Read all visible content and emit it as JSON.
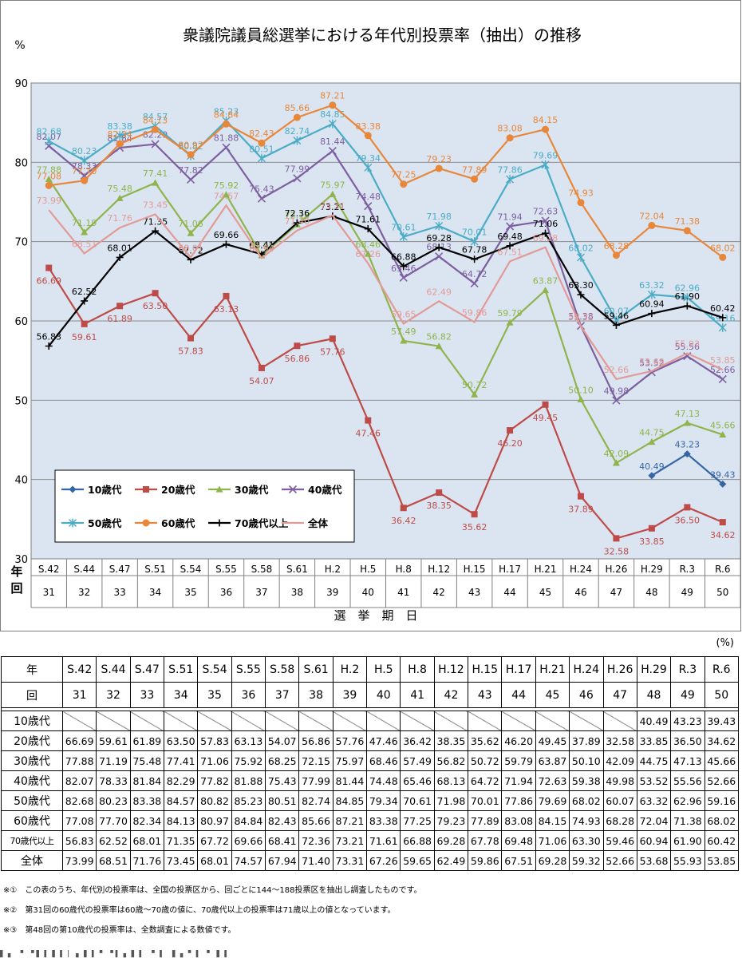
{
  "chart_data": {
    "type": "line",
    "title": "衆議院議員総選挙における年代別投票率（抽出）の推移",
    "ylabel": "%",
    "xlabel": "選　挙　期　日",
    "ylim": [
      30,
      90
    ],
    "yticks": [
      "30",
      "40",
      "50",
      "60",
      "70",
      "80",
      "90"
    ],
    "x_row_label_1": "年",
    "x_row_label_2": "回",
    "categories": [
      "S.42",
      "S.44",
      "S.47",
      "S.51",
      "S.54",
      "S.55",
      "S.58",
      "S.61",
      "H.2",
      "H.5",
      "H.8",
      "H.12",
      "H.15",
      "H.17",
      "H.21",
      "H.24",
      "H.26",
      "H.29",
      "R.3",
      "R.6"
    ],
    "sessions": [
      "31",
      "32",
      "33",
      "34",
      "35",
      "36",
      "37",
      "38",
      "39",
      "40",
      "41",
      "42",
      "43",
      "44",
      "45",
      "46",
      "47",
      "48",
      "49",
      "50"
    ],
    "grid": true,
    "legend_position": "bottom-left",
    "series": [
      {
        "name": "10歳代",
        "color": "#3465a4",
        "marker": "diamond",
        "values": [
          null,
          null,
          null,
          null,
          null,
          null,
          null,
          null,
          null,
          null,
          null,
          null,
          null,
          null,
          null,
          null,
          null,
          40.49,
          43.23,
          39.43
        ]
      },
      {
        "name": "20歳代",
        "color": "#be4b48",
        "marker": "square",
        "values": [
          66.69,
          59.61,
          61.89,
          63.5,
          57.83,
          63.13,
          54.07,
          56.86,
          57.76,
          47.46,
          36.42,
          38.35,
          35.62,
          46.2,
          49.45,
          37.89,
          32.58,
          33.85,
          36.5,
          34.62
        ]
      },
      {
        "name": "30歳代",
        "color": "#8fb44b",
        "marker": "triangle",
        "values": [
          77.88,
          71.19,
          75.48,
          77.41,
          71.06,
          75.92,
          68.25,
          72.15,
          75.97,
          68.46,
          57.49,
          56.82,
          50.72,
          59.79,
          63.87,
          50.1,
          42.09,
          44.75,
          47.13,
          45.66
        ]
      },
      {
        "name": "40歳代",
        "color": "#7d5fa0",
        "marker": "x",
        "values": [
          82.07,
          78.33,
          81.84,
          82.29,
          77.82,
          81.88,
          75.43,
          77.99,
          81.44,
          74.48,
          65.46,
          68.13,
          64.72,
          71.94,
          72.63,
          59.38,
          49.98,
          53.52,
          55.56,
          52.66
        ]
      },
      {
        "name": "50歳代",
        "color": "#4bacc6",
        "marker": "star",
        "values": [
          82.68,
          80.23,
          83.38,
          84.57,
          80.82,
          85.23,
          80.51,
          82.74,
          84.85,
          79.34,
          70.61,
          71.98,
          70.01,
          77.86,
          79.69,
          68.02,
          60.07,
          63.32,
          62.96,
          59.16
        ]
      },
      {
        "name": "60歳代",
        "color": "#e8873a",
        "marker": "circle",
        "values": [
          77.08,
          77.7,
          82.34,
          84.13,
          80.97,
          84.84,
          82.43,
          85.66,
          87.21,
          83.38,
          77.25,
          79.23,
          77.89,
          83.08,
          84.15,
          74.93,
          68.28,
          72.04,
          71.38,
          68.02
        ]
      },
      {
        "name": "70歳代以上",
        "color": "#000000",
        "marker": "plus",
        "values": [
          56.83,
          62.52,
          68.01,
          71.35,
          67.72,
          69.66,
          68.41,
          72.36,
          73.21,
          71.61,
          66.88,
          69.28,
          67.78,
          69.48,
          71.06,
          63.3,
          59.46,
          60.94,
          61.9,
          60.42
        ]
      },
      {
        "name": "全体",
        "color": "#e29a97",
        "marker": "none",
        "values": [
          73.99,
          68.51,
          71.76,
          73.45,
          68.01,
          74.57,
          67.94,
          71.4,
          73.31,
          67.26,
          59.65,
          62.49,
          59.86,
          67.51,
          69.28,
          59.32,
          52.66,
          53.68,
          55.93,
          53.85
        ]
      }
    ]
  },
  "table": {
    "unit": "(%)",
    "col_label_year": "年",
    "col_label_session": "回",
    "rows": [
      {
        "label": "10歳代",
        "values": [
          "",
          "",
          "",
          "",
          "",
          "",
          "",
          "",
          "",
          "",
          "",
          "",
          "",
          "",
          "",
          "",
          "",
          "40.49",
          "43.23",
          "39.43"
        ]
      },
      {
        "label": "20歳代",
        "values": [
          "66.69",
          "59.61",
          "61.89",
          "63.50",
          "57.83",
          "63.13",
          "54.07",
          "56.86",
          "57.76",
          "47.46",
          "36.42",
          "38.35",
          "35.62",
          "46.20",
          "49.45",
          "37.89",
          "32.58",
          "33.85",
          "36.50",
          "34.62"
        ]
      },
      {
        "label": "30歳代",
        "values": [
          "77.88",
          "71.19",
          "75.48",
          "77.41",
          "71.06",
          "75.92",
          "68.25",
          "72.15",
          "75.97",
          "68.46",
          "57.49",
          "56.82",
          "50.72",
          "59.79",
          "63.87",
          "50.10",
          "42.09",
          "44.75",
          "47.13",
          "45.66"
        ]
      },
      {
        "label": "40歳代",
        "values": [
          "82.07",
          "78.33",
          "81.84",
          "82.29",
          "77.82",
          "81.88",
          "75.43",
          "77.99",
          "81.44",
          "74.48",
          "65.46",
          "68.13",
          "64.72",
          "71.94",
          "72.63",
          "59.38",
          "49.98",
          "53.52",
          "55.56",
          "52.66"
        ]
      },
      {
        "label": "50歳代",
        "values": [
          "82.68",
          "80.23",
          "83.38",
          "84.57",
          "80.82",
          "85.23",
          "80.51",
          "82.74",
          "84.85",
          "79.34",
          "70.61",
          "71.98",
          "70.01",
          "77.86",
          "79.69",
          "68.02",
          "60.07",
          "63.32",
          "62.96",
          "59.16"
        ]
      },
      {
        "label": "60歳代",
        "values": [
          "77.08",
          "77.70",
          "82.34",
          "84.13",
          "80.97",
          "84.84",
          "82.43",
          "85.66",
          "87.21",
          "83.38",
          "77.25",
          "79.23",
          "77.89",
          "83.08",
          "84.15",
          "74.93",
          "68.28",
          "72.04",
          "71.38",
          "68.02"
        ]
      },
      {
        "label": "70歳代以上",
        "values": [
          "56.83",
          "62.52",
          "68.01",
          "71.35",
          "67.72",
          "69.66",
          "68.41",
          "72.36",
          "73.21",
          "71.61",
          "66.88",
          "69.28",
          "67.78",
          "69.48",
          "71.06",
          "63.30",
          "59.46",
          "60.94",
          "61.90",
          "60.42"
        ]
      },
      {
        "label": "全体",
        "values": [
          "73.99",
          "68.51",
          "71.76",
          "73.45",
          "68.01",
          "74.57",
          "67.94",
          "71.40",
          "73.31",
          "67.26",
          "59.65",
          "62.49",
          "59.86",
          "67.51",
          "69.28",
          "59.32",
          "52.66",
          "53.68",
          "55.93",
          "53.85"
        ]
      }
    ]
  },
  "notes": [
    "※①　この表のうち、年代別の投票率は、全国の投票区から、回ごとに144～188投票区を抽出し調査したものです。",
    "※②　第31回の60歳代の投票率は60歳～70歳の値に、70歳代以上の投票率は71歳以上の値となっています。",
    "※③　第48回の第10歳代の投票率は、全数調査による数値です。"
  ],
  "cutoff_text": "▌▖ ▘▝▌▍▌▍▏▖▌▍▘▝▍▖▌▍  ▘▍ ▌▖▘▍▝ ▌▍"
}
